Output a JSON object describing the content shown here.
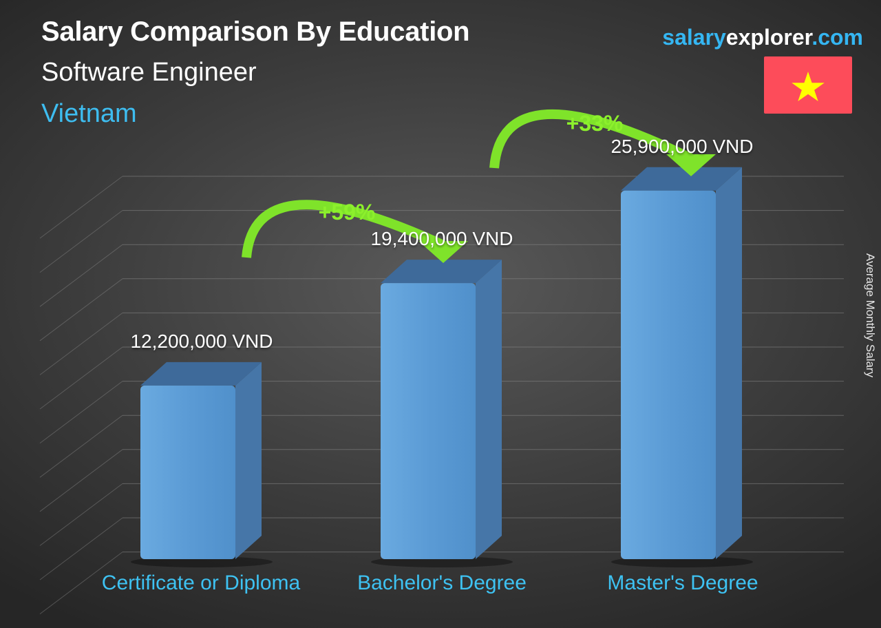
{
  "header": {
    "title": "Salary Comparison By Education",
    "subtitle": "Software Engineer",
    "country": "Vietnam"
  },
  "brand": {
    "part1": "salary",
    "part2": "explorer",
    "part3": ".com"
  },
  "colors": {
    "bar": "#5b9bd5",
    "accent": "#3ebdf0",
    "arrow": "#8cf02c",
    "flag": "#fd4c5a",
    "star": "#ffff00"
  },
  "chart_data": {
    "type": "bar",
    "title": "Salary Comparison By Education",
    "ylabel": "Average Monthly Salary",
    "categories": [
      "Certificate or Diploma",
      "Bachelor's Degree",
      "Master's Degree"
    ],
    "values": [
      12200000,
      19400000,
      25900000
    ],
    "value_labels": [
      "12,200,000 VND",
      "19,400,000 VND",
      "25,900,000 VND"
    ],
    "unit": "VND",
    "changes": [
      "+59%",
      "+33%"
    ],
    "ylim": [
      0,
      30000000
    ],
    "grid": true
  }
}
